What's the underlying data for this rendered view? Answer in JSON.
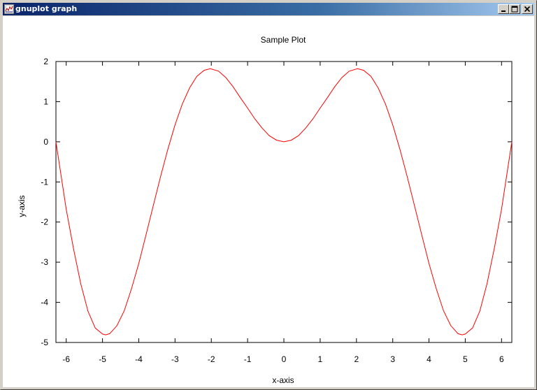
{
  "window": {
    "title": "gnuplot graph",
    "icon": "gnuplot-app-icon",
    "buttons": [
      "minimize",
      "maximize",
      "close"
    ]
  },
  "chart_data": {
    "type": "line",
    "title": "Sample Plot",
    "xlabel": "x-axis",
    "ylabel": "y-axis",
    "xlim": [
      -6.283,
      6.283
    ],
    "ylim": [
      -5,
      2
    ],
    "xticks": [
      -6,
      -5,
      -4,
      -3,
      -2,
      -1,
      0,
      1,
      2,
      3,
      4,
      5,
      6
    ],
    "yticks": [
      2,
      1,
      0,
      -1,
      -2,
      -3,
      -4,
      -5
    ],
    "grid": false,
    "series": [
      {
        "color": "#ff0000",
        "x": [
          -6.283,
          -6.0,
          -5.8,
          -5.6,
          -5.4,
          -5.2,
          -5.0,
          -4.913,
          -4.8,
          -4.6,
          -4.4,
          -4.2,
          -4.0,
          -3.8,
          -3.6,
          -3.4,
          -3.2,
          -3.0,
          -2.8,
          -2.6,
          -2.4,
          -2.2,
          -2.029,
          -1.8,
          -1.6,
          -1.4,
          -1.2,
          -1.0,
          -0.8,
          -0.6,
          -0.4,
          -0.2,
          0.0,
          0.2,
          0.4,
          0.6,
          0.8,
          1.0,
          1.2,
          1.4,
          1.6,
          1.8,
          2.029,
          2.2,
          2.4,
          2.6,
          2.8,
          3.0,
          3.2,
          3.4,
          3.6,
          3.8,
          4.0,
          4.2,
          4.4,
          4.6,
          4.8,
          4.913,
          5.0,
          5.2,
          5.4,
          5.6,
          5.8,
          6.0,
          6.283
        ],
        "y": [
          0.0,
          -1.68,
          -2.66,
          -3.53,
          -4.22,
          -4.64,
          -4.79,
          -4.81,
          -4.78,
          -4.58,
          -4.21,
          -3.66,
          -3.03,
          -2.32,
          -1.59,
          -0.87,
          -0.19,
          0.42,
          0.94,
          1.34,
          1.63,
          1.78,
          1.82,
          1.76,
          1.6,
          1.37,
          1.1,
          0.84,
          0.57,
          0.34,
          0.15,
          0.04,
          0.0,
          0.04,
          0.15,
          0.34,
          0.57,
          0.84,
          1.1,
          1.37,
          1.6,
          1.76,
          1.82,
          1.78,
          1.63,
          1.34,
          0.94,
          0.42,
          -0.19,
          -0.87,
          -1.59,
          -2.32,
          -3.03,
          -3.66,
          -4.21,
          -4.58,
          -4.78,
          -4.81,
          -4.79,
          -4.64,
          -4.22,
          -3.53,
          -2.66,
          -1.68,
          0.0
        ]
      }
    ]
  }
}
